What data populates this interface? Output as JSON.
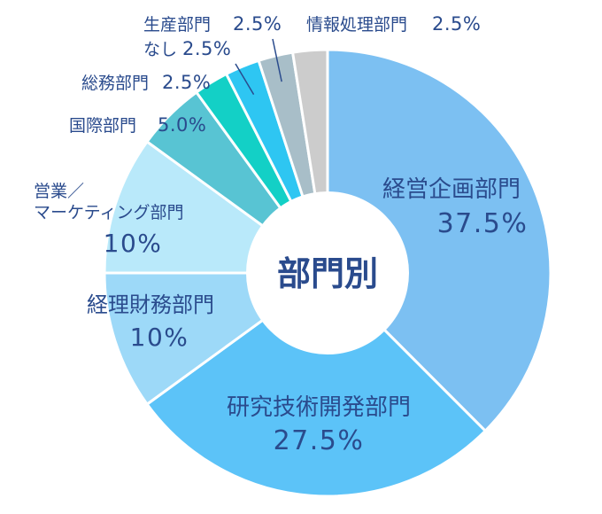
{
  "chart_data": {
    "type": "pie",
    "donut": true,
    "center_label": "部門別",
    "slices": [
      {
        "label": "経営企画部門",
        "value": 37.5,
        "value_label": "37.5%",
        "color": "#7cc0f2"
      },
      {
        "label": "研究技術開発部門",
        "value": 27.5,
        "value_label": "27.5%",
        "color": "#5cc3f8"
      },
      {
        "label": "経理財務部門",
        "value": 10,
        "value_label": "10%",
        "color": "#9dd9f8"
      },
      {
        "label": "営業／マーケティング部門",
        "label_lines": [
          "営業／",
          "マーケティング部門"
        ],
        "value": 10,
        "value_label": "10%",
        "color": "#b9e9fa"
      },
      {
        "label": "国際部門",
        "value": 5.0,
        "value_label": "5.0%",
        "color": "#58c4d3"
      },
      {
        "label": "総務部門",
        "value": 2.5,
        "value_label": "2.5%",
        "color": "#13d0c6"
      },
      {
        "label": "なし",
        "value": 2.5,
        "value_label": "2.5%",
        "color": "#2ec6f2"
      },
      {
        "label": "生産部門",
        "value": 2.5,
        "value_label": "2.5%",
        "color": "#a8bec8"
      },
      {
        "label": "情報処理部門",
        "value": 2.5,
        "value_label": "2.5%",
        "color": "#cccccc"
      }
    ],
    "colors": {
      "text": "#2a4b8d",
      "leader": "#2a4b8d"
    }
  }
}
